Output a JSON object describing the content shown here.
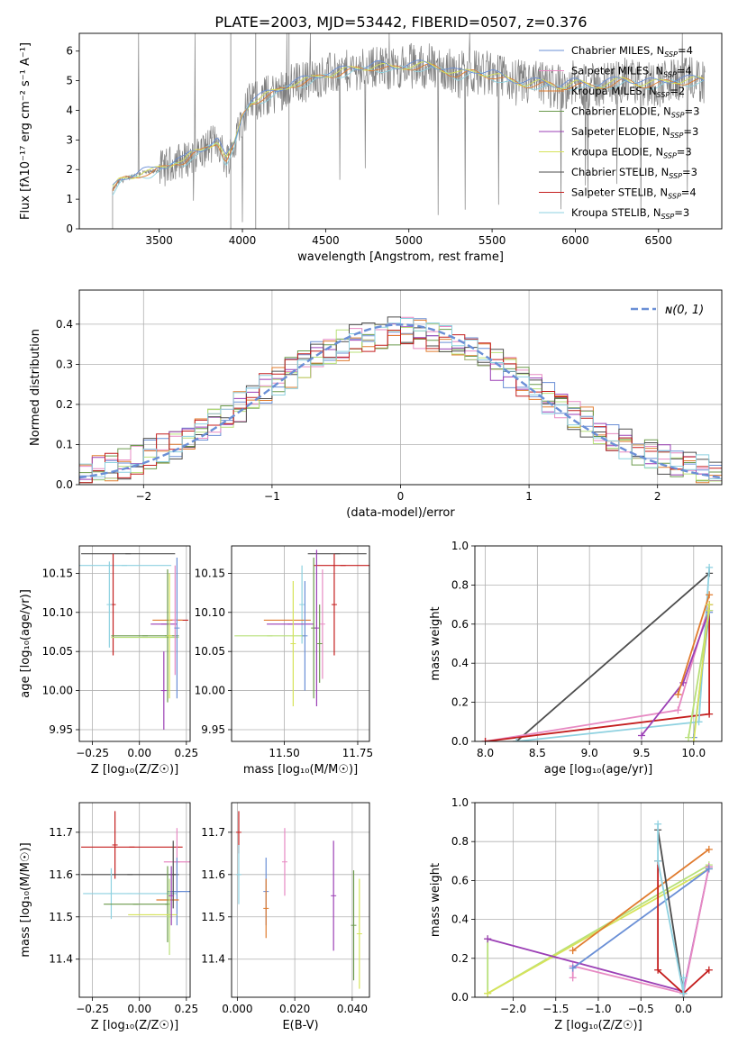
{
  "figure": {
    "title": "PLATE=2003, MJD=53442, FIBERID=0507, z=0.376"
  },
  "colors": {
    "chabrier_miles": "#6a8fd6",
    "salpeter_miles": "#e78ac3",
    "kroupa_miles": "#e07b2e",
    "chabrier_elodie": "#6b9a4c",
    "salpeter_elodie": "#9b3fb5",
    "kroupa_elodie": "#d6e35a",
    "chabrier_stelib": "#4d4d4d",
    "salpeter_stelib": "#c41e1e",
    "kroupa_stelib": "#8ed1e0",
    "light_green": "#b8e07a",
    "data": "#7f7f7f",
    "normal": "#6a8fd6"
  },
  "chart_data": [
    {
      "type": "line",
      "id": "spectrum",
      "xlabel": "wavelength [Angstrom, rest frame]",
      "ylabel": "Flux [fλ10⁻¹⁷ erg cm⁻² s⁻¹ A⁻¹]",
      "xlim": [
        3020,
        6880
      ],
      "ylim": [
        0,
        6.6
      ],
      "xticks": [
        3500,
        4000,
        4500,
        5000,
        5500,
        6000,
        6500
      ],
      "yticks": [
        0,
        1,
        2,
        3,
        4,
        5,
        6
      ],
      "grid": false,
      "legend_placement": "right",
      "legend": [
        "Chabrier MILES, N_SSP=4",
        "Salpeter MILES, N_SSP=4",
        "Kroupa MILES, N_SSP=2",
        "Chabrier ELODIE, N_SSP=3",
        "Salpeter ELODIE, N_SSP=3",
        "Kroupa ELODIE, N_SSP=3",
        "Chabrier STELIB, N_SSP=3",
        "Salpeter STELIB, N_SSP=4",
        "Kroupa STELIB, N_SSP=3"
      ],
      "continuum": {
        "x": [
          3220,
          3260,
          3300,
          3350,
          3400,
          3450,
          3500,
          3550,
          3600,
          3650,
          3700,
          3750,
          3800,
          3850,
          3900,
          3950,
          4000,
          4050,
          4100,
          4150,
          4200,
          4300,
          4400,
          4500,
          4600,
          4700,
          4800,
          4900,
          5000,
          5100,
          5200,
          5300,
          5400,
          5500,
          5600,
          5700,
          5800,
          5900,
          6000,
          6100,
          6200,
          6300,
          6400,
          6500,
          6600,
          6700,
          6780
        ],
        "y": [
          1.3,
          1.6,
          1.7,
          1.8,
          1.9,
          1.9,
          2.0,
          2.1,
          2.3,
          2.3,
          2.5,
          2.6,
          2.8,
          3.0,
          2.3,
          2.8,
          3.8,
          4.3,
          4.4,
          4.5,
          4.6,
          4.9,
          5.0,
          5.2,
          5.3,
          5.4,
          5.5,
          5.4,
          5.5,
          5.5,
          5.4,
          5.2,
          5.3,
          5.2,
          5.0,
          4.9,
          4.9,
          4.8,
          4.9,
          4.8,
          4.9,
          5.0,
          4.9,
          4.9,
          5.0,
          5.0,
          5.0
        ]
      }
    },
    {
      "type": "line",
      "id": "residual_hist",
      "xlabel": "(data-model)/error",
      "ylabel": "Normed distribution",
      "xlim": [
        -2.5,
        2.5
      ],
      "ylim": [
        0,
        0.485
      ],
      "xticks": [
        -2,
        -1,
        0,
        1,
        2
      ],
      "yticks": [
        0.0,
        0.1,
        0.2,
        0.3,
        0.4
      ],
      "grid": true,
      "legend_placement": "top-right",
      "legend": [
        "ɴ(0, 1)"
      ],
      "normal": {
        "mu": 0,
        "sigma": 1
      },
      "bin_width": 0.1
    },
    {
      "type": "scatter",
      "id": "age_vs_Z",
      "xlabel": "Z [log₁₀(Z/Z☉)]",
      "ylabel": "age  [log₁₀(age/yr)]",
      "xlim": [
        -0.32,
        0.27
      ],
      "ylim": [
        9.935,
        10.185
      ],
      "xticks": [
        -0.25,
        0.0,
        0.25
      ],
      "yticks": [
        9.95,
        10.0,
        10.05,
        10.1,
        10.15
      ],
      "grid": true,
      "series": [
        {
          "x": -0.06,
          "xerr": 0.25,
          "y": 10.175,
          "yerr": 0.0,
          "c": "chabrier_stelib"
        },
        {
          "x": -0.08,
          "xerr": 0.25,
          "y": 10.16,
          "yerr": 0.0,
          "c": "kroupa_stelib"
        },
        {
          "x": -0.14,
          "xerr": 0.0,
          "y": 10.11,
          "yerr": 0.065,
          "c": "salpeter_stelib"
        },
        {
          "x": -0.16,
          "xerr": 0.0,
          "y": 10.11,
          "yerr": 0.055,
          "c": "kroupa_stelib"
        },
        {
          "x": 0.21,
          "xerr": 0.05,
          "y": 10.09,
          "yerr": 0.0,
          "c": "salpeter_stelib"
        },
        {
          "x": 0.15,
          "xerr": 0.08,
          "y": 10.09,
          "yerr": 0.0,
          "c": "kroupa_miles"
        },
        {
          "x": 0.13,
          "xerr": 0.07,
          "y": 10.085,
          "yerr": 0.0,
          "c": "salpeter_elodie"
        },
        {
          "x": 0.03,
          "xerr": 0.18,
          "y": 10.07,
          "yerr": 0.0,
          "c": "chabrier_elodie"
        },
        {
          "x": 0.03,
          "xerr": 0.18,
          "y": 10.068,
          "yerr": 0.0,
          "c": "light_green"
        },
        {
          "x": 0.15,
          "xerr": 0.0,
          "y": 10.07,
          "yerr": 0.085,
          "c": "chabrier_elodie"
        },
        {
          "x": 0.16,
          "xerr": 0.0,
          "y": 10.07,
          "yerr": 0.08,
          "c": "kroupa_elodie"
        },
        {
          "x": 0.19,
          "xerr": 0.0,
          "y": 10.09,
          "yerr": 0.07,
          "c": "salpeter_miles"
        },
        {
          "x": 0.2,
          "xerr": 0.0,
          "y": 10.08,
          "yerr": 0.09,
          "c": "chabrier_miles"
        },
        {
          "x": 0.13,
          "xerr": 0.0,
          "y": 10.0,
          "yerr": 0.05,
          "c": "salpeter_elodie"
        }
      ]
    },
    {
      "type": "scatter",
      "id": "age_vs_mass",
      "xlabel": "mass [log₁₀(M/M☉)]",
      "ylabel": "",
      "xlim": [
        11.32,
        11.79
      ],
      "ylim": [
        9.935,
        10.185
      ],
      "xticks": [
        11.5,
        11.75
      ],
      "yticks": [
        9.95,
        10.0,
        10.05,
        10.1,
        10.15
      ],
      "grid": true,
      "series": [
        {
          "x": 11.68,
          "xerr": 0.1,
          "y": 10.175,
          "yerr": 0.0,
          "c": "chabrier_stelib"
        },
        {
          "x": 11.7,
          "xerr": 0.1,
          "y": 10.16,
          "yerr": 0.0,
          "c": "salpeter_stelib"
        },
        {
          "x": 11.56,
          "xerr": 0.0,
          "y": 10.11,
          "yerr": 0.05,
          "c": "kroupa_stelib"
        },
        {
          "x": 11.67,
          "xerr": 0.0,
          "y": 10.11,
          "yerr": 0.065,
          "c": "salpeter_stelib"
        },
        {
          "x": 11.51,
          "xerr": 0.08,
          "y": 10.09,
          "yerr": 0.0,
          "c": "kroupa_miles"
        },
        {
          "x": 11.52,
          "xerr": 0.08,
          "y": 10.085,
          "yerr": 0.0,
          "c": "salpeter_elodie"
        },
        {
          "x": 11.45,
          "xerr": 0.12,
          "y": 10.07,
          "yerr": 0.0,
          "c": "light_green"
        },
        {
          "x": 11.57,
          "xerr": 0.0,
          "y": 10.07,
          "yerr": 0.07,
          "c": "chabrier_miles"
        },
        {
          "x": 11.6,
          "xerr": 0.0,
          "y": 10.08,
          "yerr": 0.09,
          "c": "chabrier_elodie"
        },
        {
          "x": 11.61,
          "xerr": 0.0,
          "y": 10.08,
          "yerr": 0.1,
          "c": "salpeter_elodie"
        },
        {
          "x": 11.53,
          "xerr": 0.0,
          "y": 10.06,
          "yerr": 0.08,
          "c": "kroupa_elodie"
        },
        {
          "x": 11.63,
          "xerr": 0.0,
          "y": 10.085,
          "yerr": 0.07,
          "c": "salpeter_miles"
        },
        {
          "x": 11.62,
          "xerr": 0.0,
          "y": 10.06,
          "yerr": 0.05,
          "c": "chabrier_elodie"
        }
      ]
    },
    {
      "type": "line",
      "id": "weight_vs_age",
      "xlabel": "age  [log₁₀(age/yr)]",
      "ylabel": "mass weight",
      "xlim": [
        7.9,
        10.27
      ],
      "ylim": [
        0,
        1.0
      ],
      "xticks": [
        8.0,
        8.5,
        9.0,
        9.5,
        10.0
      ],
      "yticks": [
        0.0,
        0.2,
        0.4,
        0.6,
        0.8,
        1.0
      ],
      "grid": true,
      "series": [
        {
          "c": "chabrier_stelib",
          "x": [
            8.3,
            10.15
          ],
          "y": [
            0.0,
            0.86
          ]
        },
        {
          "c": "salpeter_miles",
          "x": [
            8.0,
            9.85,
            10.15
          ],
          "y": [
            0.0,
            0.16,
            0.7
          ]
        },
        {
          "c": "salpeter_stelib",
          "x": [
            8.0,
            10.15,
            10.15
          ],
          "y": [
            0.0,
            0.14,
            0.7
          ]
        },
        {
          "c": "kroupa_stelib",
          "x": [
            8.3,
            10.05,
            10.15
          ],
          "y": [
            0.0,
            0.1,
            0.89
          ]
        },
        {
          "c": "salpeter_elodie",
          "x": [
            9.5,
            9.9,
            10.15
          ],
          "y": [
            0.03,
            0.3,
            0.67
          ]
        },
        {
          "c": "kroupa_miles",
          "x": [
            9.85,
            10.15
          ],
          "y": [
            0.24,
            0.75
          ]
        },
        {
          "c": "chabrier_miles",
          "x": [
            10.0,
            10.15
          ],
          "y": [
            0.02,
            0.66
          ]
        },
        {
          "c": "light_green",
          "x": [
            9.95,
            10.15
          ],
          "y": [
            0.02,
            0.67
          ]
        },
        {
          "c": "kroupa_elodie",
          "x": [
            10.0,
            10.15
          ],
          "y": [
            0.0,
            0.7
          ]
        }
      ]
    },
    {
      "type": "scatter",
      "id": "mass_vs_Z",
      "xlabel": "Z [log₁₀(Z/Z☉)]",
      "ylabel": "mass [log₁₀(M/M☉)]",
      "xlim": [
        -0.32,
        0.27
      ],
      "ylim": [
        11.31,
        11.77
      ],
      "xticks": [
        -0.25,
        0.0,
        0.25
      ],
      "yticks": [
        11.4,
        11.5,
        11.6,
        11.7
      ],
      "grid": true,
      "series": [
        {
          "x": -0.13,
          "xerr": 0.0,
          "y": 11.67,
          "yerr": 0.08,
          "c": "salpeter_stelib"
        },
        {
          "x": -0.04,
          "xerr": 0.27,
          "y": 11.665,
          "yerr": 0.0,
          "c": "salpeter_stelib"
        },
        {
          "x": 0.2,
          "xerr": 0.07,
          "y": 11.63,
          "yerr": 0.0,
          "c": "salpeter_miles"
        },
        {
          "x": 0.2,
          "xerr": 0.0,
          "y": 11.63,
          "yerr": 0.08,
          "c": "salpeter_miles"
        },
        {
          "x": -0.05,
          "xerr": 0.26,
          "y": 11.6,
          "yerr": 0.0,
          "c": "chabrier_stelib"
        },
        {
          "x": 0.21,
          "xerr": 0.06,
          "y": 11.56,
          "yerr": 0.0,
          "c": "chabrier_miles"
        },
        {
          "x": 0.2,
          "xerr": 0.0,
          "y": 11.56,
          "yerr": 0.08,
          "c": "chabrier_miles"
        },
        {
          "x": -0.05,
          "xerr": 0.25,
          "y": 11.555,
          "yerr": 0.0,
          "c": "kroupa_stelib"
        },
        {
          "x": -0.15,
          "xerr": 0.0,
          "y": 11.555,
          "yerr": 0.06,
          "c": "kroupa_stelib"
        },
        {
          "x": 0.15,
          "xerr": 0.06,
          "y": 11.54,
          "yerr": 0.0,
          "c": "kroupa_miles"
        },
        {
          "x": -0.02,
          "xerr": 0.17,
          "y": 11.53,
          "yerr": 0.0,
          "c": "chabrier_elodie"
        },
        {
          "x": 0.15,
          "xerr": 0.0,
          "y": 11.53,
          "yerr": 0.09,
          "c": "chabrier_elodie"
        },
        {
          "x": 0.07,
          "xerr": 0.13,
          "y": 11.505,
          "yerr": 0.0,
          "c": "kroupa_elodie"
        },
        {
          "x": 0.16,
          "xerr": 0.0,
          "y": 11.5,
          "yerr": 0.09,
          "c": "light_green"
        },
        {
          "x": 0.18,
          "xerr": 0.0,
          "y": 11.6,
          "yerr": 0.08,
          "c": "chabrier_stelib"
        },
        {
          "x": 0.17,
          "xerr": 0.0,
          "y": 11.55,
          "yerr": 0.07,
          "c": "salpeter_elodie"
        }
      ]
    },
    {
      "type": "scatter",
      "id": "mass_vs_ebv",
      "xlabel": "E(B-V)",
      "ylabel": "",
      "xlim": [
        -0.002,
        0.046
      ],
      "ylim": [
        11.31,
        11.77
      ],
      "xticks": [
        0.0,
        0.02,
        0.04
      ],
      "xticklabels": [
        "0.000",
        "0.020",
        "0.040"
      ],
      "yticks": [
        11.4,
        11.5,
        11.6,
        11.7
      ],
      "grid": true,
      "series": [
        {
          "x": 0.0005,
          "xerr": 0.0,
          "y": 11.7,
          "yerr": 0.05,
          "c": "salpeter_stelib"
        },
        {
          "x": 0.0005,
          "xerr": 0.0,
          "y": 11.6,
          "yerr": 0.07,
          "c": "kroupa_stelib"
        },
        {
          "x": 0.01,
          "xerr": 0.0,
          "y": 11.56,
          "yerr": 0.08,
          "c": "chabrier_miles"
        },
        {
          "x": 0.01,
          "xerr": 0.0,
          "y": 11.52,
          "yerr": 0.07,
          "c": "kroupa_miles"
        },
        {
          "x": 0.0165,
          "xerr": 0.0,
          "y": 11.63,
          "yerr": 0.08,
          "c": "salpeter_miles"
        },
        {
          "x": 0.0335,
          "xerr": 0.0,
          "y": 11.55,
          "yerr": 0.13,
          "c": "salpeter_elodie"
        },
        {
          "x": 0.0405,
          "xerr": 0.0,
          "y": 11.48,
          "yerr": 0.13,
          "c": "chabrier_elodie"
        },
        {
          "x": 0.0425,
          "xerr": 0.0,
          "y": 11.46,
          "yerr": 0.13,
          "c": "kroupa_elodie"
        }
      ]
    },
    {
      "type": "line",
      "id": "weight_vs_Z",
      "xlabel": "Z [log₁₀(Z/Z☉)]",
      "ylabel": "mass weight",
      "xlim": [
        -2.45,
        0.45
      ],
      "ylim": [
        0,
        1.0
      ],
      "xticks": [
        -2.0,
        -1.5,
        -1.0,
        -0.5,
        0.0
      ],
      "yticks": [
        0.0,
        0.2,
        0.4,
        0.6,
        0.8,
        1.0
      ],
      "grid": true,
      "series": [
        {
          "c": "light_green",
          "x": [
            -2.3,
            -2.3,
            0.3
          ],
          "y": [
            0.3,
            0.02,
            0.68
          ]
        },
        {
          "c": "kroupa_elodie",
          "x": [
            -2.3,
            0.3
          ],
          "y": [
            0.02,
            0.66
          ]
        },
        {
          "c": "salpeter_elodie",
          "x": [
            -2.3,
            0.0,
            0.3
          ],
          "y": [
            0.3,
            0.03,
            0.67
          ]
        },
        {
          "c": "kroupa_miles",
          "x": [
            -1.3,
            0.3
          ],
          "y": [
            0.24,
            0.76
          ]
        },
        {
          "c": "salpeter_miles",
          "x": [
            -1.3,
            -1.3,
            0.0,
            0.3
          ],
          "y": [
            0.1,
            0.16,
            0.02,
            0.67
          ]
        },
        {
          "c": "chabrier_miles",
          "x": [
            -1.3,
            0.3
          ],
          "y": [
            0.15,
            0.66
          ]
        },
        {
          "c": "salpeter_stelib",
          "x": [
            -0.3,
            -0.3,
            0.0,
            0.3
          ],
          "y": [
            0.7,
            0.14,
            0.02,
            0.14
          ]
        },
        {
          "c": "chabrier_stelib",
          "x": [
            -0.3,
            0.0
          ],
          "y": [
            0.86,
            0.02
          ]
        },
        {
          "c": "kroupa_stelib",
          "x": [
            -0.3,
            -0.3,
            0.0,
            0.0
          ],
          "y": [
            0.89,
            0.7,
            0.02,
            0.1
          ]
        }
      ]
    }
  ]
}
